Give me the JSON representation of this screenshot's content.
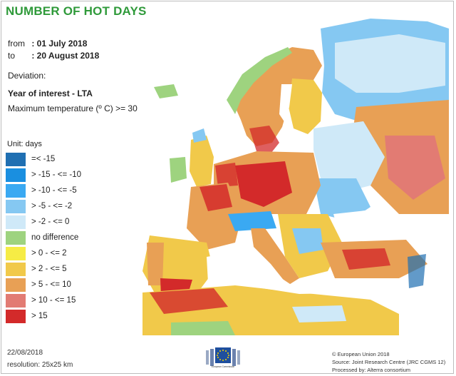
{
  "title": "NUMBER OF HOT DAYS",
  "period": {
    "from_label": "from",
    "from_value": ": 01 July 2018",
    "to_label": "to",
    "to_value": ": 20 August 2018"
  },
  "deviation_label": "Deviation:",
  "comparison_label": "Year of interest - LTA",
  "criterion_label": "Maximum temperature (º C) >= 30",
  "unit_label": "Unit: days",
  "legend": [
    {
      "label": "=< -15",
      "color": "#1f6fb2"
    },
    {
      "label": "> -15 - <= -10",
      "color": "#1a8fe0"
    },
    {
      "label": "> -10 - <= -5",
      "color": "#3aa9f2"
    },
    {
      "label": "> -5 - <= -2",
      "color": "#85c8f2"
    },
    {
      "label": "> -2 - <= 0",
      "color": "#cfe9f8"
    },
    {
      "label": "no difference",
      "color": "#9ed37f"
    },
    {
      "label": "> 0 - <= 2",
      "color": "#f6ec45"
    },
    {
      "label": "> 2 - <= 5",
      "color": "#f1c94a"
    },
    {
      "label": "> 5 - <= 10",
      "color": "#e8a055"
    },
    {
      "label": "> 10 - <= 15",
      "color": "#e27b73"
    },
    {
      "label": "> 15",
      "color": "#d32a2a"
    }
  ],
  "footer": {
    "date": "22/08/2018",
    "resolution": "resolution: 25x25 km",
    "copyright": "© European Union 2018",
    "source": "Source: Joint Research Centre (JRC CGMS 12)",
    "processed": "Processed by: Alterra consortium"
  },
  "logo_caption": "European Commission"
}
